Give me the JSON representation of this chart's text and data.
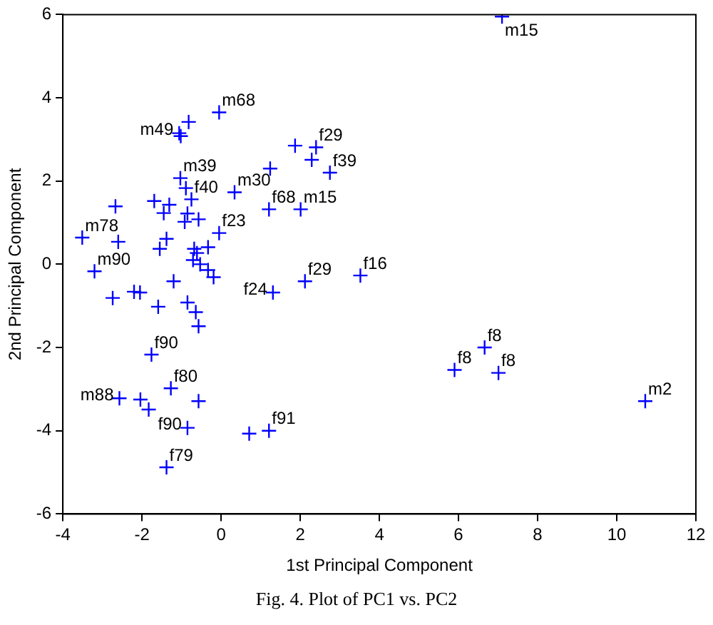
{
  "chart_data": {
    "type": "scatter",
    "xlabel": "1st Principal Component",
    "ylabel": "2nd Principal Component",
    "xlim": [
      -4,
      12
    ],
    "ylim": [
      -6,
      6
    ],
    "xticks": [
      -4,
      -2,
      0,
      2,
      4,
      6,
      8,
      10,
      12
    ],
    "yticks": [
      -6,
      -4,
      -2,
      0,
      2,
      4,
      6
    ],
    "grid": false,
    "legend": false,
    "marker": "cross",
    "series": [
      {
        "color": "#0000ff",
        "x": [
          7.1,
          -0.05,
          -1.06,
          -1.02,
          -0.82,
          1.87,
          2.4,
          2.29,
          2.75,
          1.24,
          -1.03,
          -0.89,
          -0.75,
          0.34,
          1.21,
          2.01,
          -0.05,
          -2.67,
          -1.69,
          -1.31,
          -1.45,
          -0.85,
          -0.92,
          -0.57,
          -1.38,
          -1.55,
          -3.51,
          -2.6,
          -0.68,
          -0.33,
          -0.61,
          -0.71,
          -0.53,
          -0.33,
          -0.19,
          -3.2,
          -1.2,
          -2.74,
          -2.2,
          -2.05,
          -1.59,
          -0.85,
          -0.64,
          -0.57,
          1.31,
          2.12,
          3.52,
          -1.76,
          -1.27,
          -2.57,
          -2.04,
          -1.83,
          -0.57,
          -0.85,
          -1.38,
          0.71,
          1.21,
          5.9,
          6.66,
          7.01,
          10.72
        ],
        "values": [
          5.95,
          3.65,
          3.15,
          3.08,
          3.42,
          2.85,
          2.81,
          2.51,
          2.2,
          2.3,
          2.07,
          1.83,
          1.56,
          1.73,
          1.32,
          1.32,
          0.75,
          1.39,
          1.52,
          1.43,
          1.23,
          1.22,
          1.02,
          1.08,
          0.61,
          0.37,
          0.64,
          0.54,
          0.37,
          0.41,
          0.27,
          0.1,
          0.0,
          -0.14,
          -0.31,
          -0.17,
          -0.41,
          -0.81,
          -0.66,
          -0.68,
          -1.02,
          -0.92,
          -1.15,
          -1.49,
          -0.68,
          -0.41,
          -0.27,
          -2.17,
          -2.98,
          -3.22,
          -3.25,
          -3.49,
          -3.29,
          -3.93,
          -4.88,
          -4.07,
          -4.0,
          -2.54,
          -2.0,
          -2.61,
          -3.29
        ]
      }
    ],
    "annotations": [
      {
        "text": "m15",
        "x": 7.1,
        "y": 5.95
      },
      {
        "text": "m68",
        "x": -0.05,
        "y": 3.65
      },
      {
        "text": "m49",
        "x": -1.06,
        "y": 3.15
      },
      {
        "text": "f29",
        "x": 2.4,
        "y": 2.81
      },
      {
        "text": "f39",
        "x": 2.75,
        "y": 2.2
      },
      {
        "text": "m39",
        "x": -1.03,
        "y": 2.07
      },
      {
        "text": "f40",
        "x": -0.75,
        "y": 1.56
      },
      {
        "text": "m30",
        "x": 0.34,
        "y": 1.73
      },
      {
        "text": "f68",
        "x": 1.21,
        "y": 1.32
      },
      {
        "text": "m15",
        "x": 2.01,
        "y": 1.32
      },
      {
        "text": "f23",
        "x": -0.05,
        "y": 0.75
      },
      {
        "text": "m78",
        "x": -3.51,
        "y": 0.64
      },
      {
        "text": "m90",
        "x": -3.2,
        "y": -0.17
      },
      {
        "text": "f24",
        "x": 1.31,
        "y": -0.68
      },
      {
        "text": "f29",
        "x": 2.12,
        "y": -0.41
      },
      {
        "text": "f16",
        "x": 3.52,
        "y": -0.27
      },
      {
        "text": "f90",
        "x": -1.76,
        "y": -2.17
      },
      {
        "text": "f80",
        "x": -1.27,
        "y": -2.98
      },
      {
        "text": "m88",
        "x": -2.57,
        "y": -3.22
      },
      {
        "text": "f90",
        "x": -0.85,
        "y": -3.93
      },
      {
        "text": "f79",
        "x": -1.38,
        "y": -4.88
      },
      {
        "text": "f91",
        "x": 1.21,
        "y": -4.0
      },
      {
        "text": "f8",
        "x": 5.9,
        "y": -2.54
      },
      {
        "text": "f8",
        "x": 6.66,
        "y": -2.0
      },
      {
        "text": "f8",
        "x": 7.01,
        "y": -2.61
      },
      {
        "text": "m2",
        "x": 10.72,
        "y": -3.29
      },
      "Fig. 4.  Plot of PC1 vs. PC2"
    ]
  }
}
